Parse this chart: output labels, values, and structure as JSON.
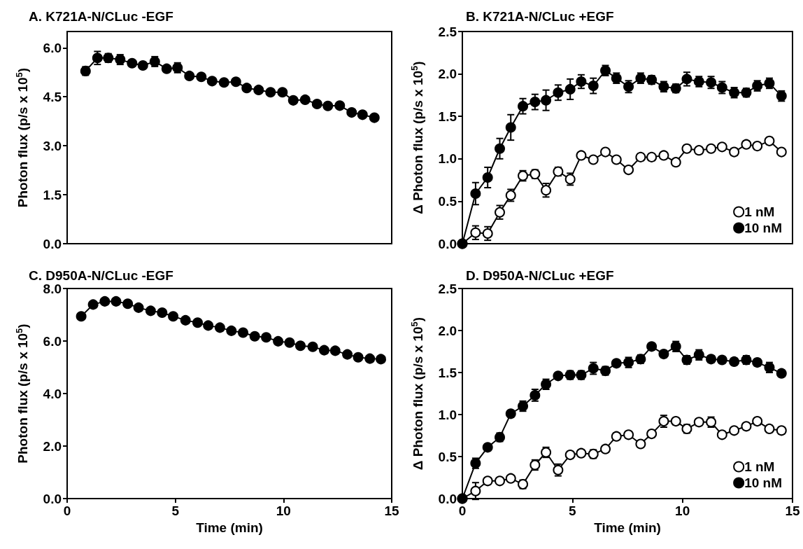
{
  "chart_data": [
    {
      "type": "line",
      "title": "A. K721A-N/CLuc -EGF",
      "ylabel": "Photon flux (p/s x 10$^{5}$)",
      "xlim": [
        0,
        15
      ],
      "ylim": [
        0,
        6.5
      ],
      "yticks": [
        {
          "value": 0,
          "label": "0.0"
        },
        {
          "value": 1.5,
          "label": "1.5"
        },
        {
          "value": 3,
          "label": "3.0"
        },
        {
          "value": 4.5,
          "label": "4.5"
        },
        {
          "value": 6,
          "label": "6.0"
        }
      ],
      "tick_labels": "y",
      "marker": "circle",
      "line_style": "solid",
      "legend": false,
      "grid": false,
      "x": [
        0.85,
        1.4,
        1.9,
        2.45,
        3.0,
        3.5,
        4.05,
        4.6,
        5.1,
        5.65,
        6.2,
        6.7,
        7.25,
        7.8,
        8.3,
        8.85,
        9.4,
        9.95,
        10.45,
        11.0,
        11.55,
        12.05,
        12.6,
        13.15,
        13.65,
        14.2
      ],
      "series": [
        {
          "color": "#000000",
          "values": [
            5.29,
            5.69,
            5.69,
            5.64,
            5.53,
            5.46,
            5.58,
            5.36,
            5.39,
            5.14,
            5.11,
            4.98,
            4.94,
            4.96,
            4.77,
            4.71,
            4.64,
            4.64,
            4.39,
            4.41,
            4.28,
            4.22,
            4.23,
            4.02,
            3.95,
            3.86
          ],
          "errors": [
            0.13,
            0.2,
            0.13,
            0.15,
            0.05,
            0.06,
            0.15,
            0.05,
            0.15,
            0.05,
            0.05,
            0.05,
            0.05,
            0.05,
            0.05,
            0.05,
            0.05,
            0.05,
            0.07,
            0.05,
            0.05,
            0.05,
            0.07,
            0.05,
            0.05,
            0.05
          ]
        }
      ]
    },
    {
      "type": "line",
      "title": "B. K721A-N/CLuc +EGF",
      "ylabel": "Δ Photon flux (p/s x 10$^{5}$)",
      "xlim": [
        0,
        15
      ],
      "ylim": [
        0,
        2.5
      ],
      "yticks": [
        {
          "value": 0,
          "label": "0.0"
        },
        {
          "value": 0.5,
          "label": "0.5"
        },
        {
          "value": 1,
          "label": "1.0"
        },
        {
          "value": 1.5,
          "label": "1.5"
        },
        {
          "value": 2,
          "label": "2.0"
        },
        {
          "value": 2.5,
          "label": "2.5"
        }
      ],
      "tick_labels": "y",
      "marker": "circle",
      "line_style": "solid",
      "legend": "bottom right",
      "grid": false,
      "x": [
        0,
        0.6,
        1.15,
        1.7,
        2.2,
        2.75,
        3.3,
        3.8,
        4.35,
        4.9,
        5.4,
        5.95,
        6.5,
        7.0,
        7.55,
        8.1,
        8.6,
        9.15,
        9.7,
        10.2,
        10.75,
        11.3,
        11.8,
        12.35,
        12.9,
        13.4,
        13.95,
        14.5
      ],
      "series": [
        {
          "name": "1 nM",
          "color": "#ffffff",
          "values": [
            0,
            0.13,
            0.12,
            0.37,
            0.57,
            0.8,
            0.82,
            0.63,
            0.85,
            0.76,
            1.04,
            0.99,
            1.08,
            0.99,
            0.87,
            1.02,
            1.02,
            1.04,
            0.96,
            1.12,
            1.1,
            1.12,
            1.14,
            1.08,
            1.17,
            1.15,
            1.21,
            1.08
          ],
          "errors": [
            null,
            0.08,
            0.08,
            0.08,
            0.07,
            0.06,
            0.05,
            0.08,
            0.05,
            0.07,
            0.04,
            0.03,
            0.03,
            0.03,
            0.03,
            0.04,
            0.04,
            0.04,
            0.04,
            0.04,
            0.04,
            0.03,
            0.03,
            0.04,
            0.04,
            0.04,
            0.04,
            0.03
          ]
        },
        {
          "name": "10 nM",
          "color": "#000000",
          "values": [
            0,
            0.59,
            0.78,
            1.12,
            1.37,
            1.62,
            1.67,
            1.69,
            1.78,
            1.82,
            1.91,
            1.86,
            2.04,
            1.95,
            1.85,
            1.95,
            1.93,
            1.85,
            1.83,
            1.94,
            1.91,
            1.9,
            1.84,
            1.78,
            1.78,
            1.86,
            1.89,
            1.74
          ],
          "errors": [
            null,
            0.13,
            0.12,
            0.12,
            0.15,
            0.09,
            0.09,
            0.12,
            0.09,
            0.12,
            0.08,
            0.09,
            0.06,
            0.06,
            0.07,
            0.06,
            0.05,
            0.06,
            0.05,
            0.08,
            0.06,
            0.07,
            0.07,
            0.06,
            0.05,
            0.06,
            0.06,
            0.06
          ]
        }
      ]
    },
    {
      "type": "line",
      "title": "C. D950A-N/CLuc -EGF",
      "xlabel": "Time (min)",
      "ylabel": "Photon flux (p/s x 10$^{5}$)",
      "xlim": [
        0,
        15
      ],
      "xticks": [
        0,
        5,
        10,
        15
      ],
      "ylim": [
        0,
        8
      ],
      "yticks": [
        {
          "value": 0,
          "label": "0.0"
        },
        {
          "value": 2,
          "label": "2.0"
        },
        {
          "value": 4,
          "label": "4.0"
        },
        {
          "value": 6,
          "label": "6.0"
        },
        {
          "value": 8,
          "label": "8.0"
        }
      ],
      "marker": "circle",
      "line_style": "solid",
      "legend": false,
      "grid": false,
      "x": [
        0.65,
        1.2,
        1.74,
        2.26,
        2.8,
        3.3,
        3.86,
        4.39,
        4.9,
        5.47,
        6.03,
        6.52,
        7.06,
        7.59,
        8.13,
        8.67,
        9.2,
        9.75,
        10.28,
        10.78,
        11.35,
        11.88,
        12.39,
        12.95,
        13.45,
        13.99,
        14.5
      ],
      "series": [
        {
          "color": "#000000",
          "values": [
            6.94,
            7.39,
            7.51,
            7.51,
            7.42,
            7.27,
            7.15,
            7.08,
            6.94,
            6.79,
            6.7,
            6.59,
            6.51,
            6.39,
            6.32,
            6.18,
            6.14,
            5.99,
            5.94,
            5.82,
            5.78,
            5.65,
            5.63,
            5.49,
            5.38,
            5.33,
            5.31
          ]
        }
      ]
    },
    {
      "type": "line",
      "title": "D. D950A-N/CLuc +EGF",
      "xlabel": "Time (min)",
      "ylabel": "Δ Photon flux (p/s x 10$^{5}$)",
      "xlim": [
        0,
        15
      ],
      "xticks": [
        0,
        5,
        10,
        15
      ],
      "ylim": [
        0,
        2.5
      ],
      "yticks": [
        {
          "value": 0,
          "label": "0.0"
        },
        {
          "value": 0.5,
          "label": "0.5"
        },
        {
          "value": 1,
          "label": "1.0"
        },
        {
          "value": 1.5,
          "label": "1.5"
        },
        {
          "value": 2,
          "label": "2.0"
        },
        {
          "value": 2.5,
          "label": "2.5"
        }
      ],
      "marker": "circle",
      "line_style": "solid",
      "legend": "bottom right",
      "grid": false,
      "x": [
        0,
        0.6,
        1.15,
        1.7,
        2.2,
        2.75,
        3.3,
        3.8,
        4.35,
        4.9,
        5.4,
        5.95,
        6.5,
        7.0,
        7.55,
        8.1,
        8.6,
        9.15,
        9.7,
        10.2,
        10.75,
        11.3,
        11.8,
        12.35,
        12.9,
        13.4,
        13.95,
        14.5
      ],
      "series": [
        {
          "name": "1 nM",
          "color": "#ffffff",
          "values": [
            0,
            0.09,
            0.21,
            0.21,
            0.24,
            0.17,
            0.4,
            0.55,
            0.34,
            0.52,
            0.54,
            0.53,
            0.59,
            0.74,
            0.76,
            0.65,
            0.77,
            0.92,
            0.92,
            0.83,
            0.91,
            0.91,
            0.76,
            0.81,
            0.86,
            0.92,
            0.83,
            0.81
          ],
          "errors": [
            null,
            0.1,
            0.04,
            0.03,
            0.03,
            0.05,
            0.06,
            0.06,
            0.07,
            0.04,
            0.04,
            0.05,
            0.04,
            0.04,
            0.04,
            0.04,
            0.04,
            0.07,
            0.04,
            0.05,
            0.04,
            0.06,
            0.03,
            0.03,
            0.04,
            0.04,
            0.04,
            0.04
          ]
        },
        {
          "name": "10 nM",
          "color": "#000000",
          "values": [
            0,
            0.42,
            0.61,
            0.73,
            1.01,
            1.1,
            1.23,
            1.36,
            1.46,
            1.47,
            1.47,
            1.55,
            1.52,
            1.61,
            1.62,
            1.66,
            1.81,
            1.72,
            1.81,
            1.65,
            1.71,
            1.66,
            1.65,
            1.63,
            1.65,
            1.62,
            1.56,
            1.49
          ],
          "errors": [
            null,
            0.06,
            0.04,
            0.05,
            0.04,
            0.06,
            0.07,
            0.06,
            0.03,
            0.05,
            0.05,
            0.07,
            0.05,
            0.04,
            0.06,
            0.05,
            0.04,
            0.04,
            0.06,
            0.05,
            0.06,
            0.04,
            0.04,
            0.04,
            0.05,
            0.04,
            0.06,
            0.04
          ]
        }
      ]
    }
  ]
}
